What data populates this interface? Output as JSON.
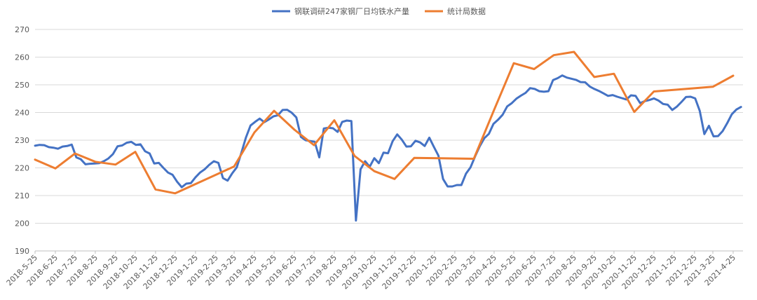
{
  "chart_data": {
    "type": "line",
    "ylim": [
      190,
      270
    ],
    "y_ticks": [
      190,
      200,
      210,
      220,
      230,
      240,
      250,
      260,
      270
    ],
    "x_tick_labels": [
      "2018-5-25",
      "2018-6-25",
      "2018-7-25",
      "2018-8-25",
      "2018-9-25",
      "2018-10-25",
      "2018-11-25",
      "2018-12-25",
      "2019-1-25",
      "2019-2-25",
      "2019-3-25",
      "2019-4-25",
      "2019-5-25",
      "2019-6-25",
      "2019-7-25",
      "2019-8-25",
      "2019-9-25",
      "2019-10-25",
      "2019-11-25",
      "2019-12-25",
      "2020-1-25",
      "2020-2-25",
      "2020-3-25",
      "2020-4-25",
      "2020-5-25",
      "2020-6-25",
      "2020-7-25",
      "2020-8-25",
      "2020-9-25",
      "2020-10-25",
      "2020-11-25",
      "2020-12-25",
      "2021-1-25",
      "2021-2-25",
      "2021-3-25",
      "2021-4-25"
    ],
    "x_start": "2018-5-25",
    "x_end": "2021-5-10",
    "grid": true,
    "legend_position": "top",
    "series": [
      {
        "name": "钢联调研247家钢厂日均铁水产量",
        "color": "#4472c4",
        "points": [
          [
            "2018-5-25",
            228.0
          ],
          [
            "2018-6-1",
            228.3
          ],
          [
            "2018-6-8",
            228.2
          ],
          [
            "2018-6-15",
            227.5
          ],
          [
            "2018-6-22",
            227.3
          ],
          [
            "2018-6-29",
            226.9
          ],
          [
            "2018-7-6",
            227.7
          ],
          [
            "2018-7-13",
            227.9
          ],
          [
            "2018-7-20",
            228.4
          ],
          [
            "2018-7-27",
            223.8
          ],
          [
            "2018-8-3",
            223.1
          ],
          [
            "2018-8-10",
            221.3
          ],
          [
            "2018-8-17",
            221.5
          ],
          [
            "2018-8-24",
            221.6
          ],
          [
            "2018-8-31",
            221.7
          ],
          [
            "2018-9-7",
            222.4
          ],
          [
            "2018-9-14",
            223.4
          ],
          [
            "2018-9-21",
            225.0
          ],
          [
            "2018-9-28",
            227.8
          ],
          [
            "2018-10-5",
            228.1
          ],
          [
            "2018-10-12",
            229.1
          ],
          [
            "2018-10-19",
            229.4
          ],
          [
            "2018-10-26",
            228.3
          ],
          [
            "2018-11-2",
            228.5
          ],
          [
            "2018-11-9",
            226.0
          ],
          [
            "2018-11-16",
            225.2
          ],
          [
            "2018-11-23",
            221.6
          ],
          [
            "2018-11-30",
            221.8
          ],
          [
            "2018-12-7",
            220.0
          ],
          [
            "2018-12-14",
            218.3
          ],
          [
            "2018-12-21",
            217.5
          ],
          [
            "2018-12-28",
            215.0
          ],
          [
            "2019-1-4",
            213.0
          ],
          [
            "2019-1-11",
            214.3
          ],
          [
            "2019-1-18",
            214.5
          ],
          [
            "2019-1-25",
            216.6
          ],
          [
            "2019-2-1",
            218.3
          ],
          [
            "2019-2-8",
            219.5
          ],
          [
            "2019-2-15",
            221.1
          ],
          [
            "2019-2-22",
            222.4
          ],
          [
            "2019-3-1",
            221.8
          ],
          [
            "2019-3-8",
            216.3
          ],
          [
            "2019-3-15",
            215.4
          ],
          [
            "2019-3-22",
            218.0
          ],
          [
            "2019-3-29",
            220.2
          ],
          [
            "2019-4-5",
            225.4
          ],
          [
            "2019-4-12",
            231.0
          ],
          [
            "2019-4-19",
            235.3
          ],
          [
            "2019-4-26",
            236.6
          ],
          [
            "2019-5-3",
            237.8
          ],
          [
            "2019-5-10",
            236.5
          ],
          [
            "2019-5-17",
            237.5
          ],
          [
            "2019-5-24",
            238.6
          ],
          [
            "2019-5-31",
            239.0
          ],
          [
            "2019-6-7",
            240.9
          ],
          [
            "2019-6-14",
            241.0
          ],
          [
            "2019-6-21",
            239.9
          ],
          [
            "2019-6-28",
            238.2
          ],
          [
            "2019-7-5",
            231.2
          ],
          [
            "2019-7-12",
            230.0
          ],
          [
            "2019-7-19",
            229.7
          ],
          [
            "2019-7-26",
            229.4
          ],
          [
            "2019-8-2",
            223.8
          ],
          [
            "2019-8-9",
            234.2
          ],
          [
            "2019-8-16",
            234.5
          ],
          [
            "2019-8-23",
            234.3
          ],
          [
            "2019-8-30",
            233.0
          ],
          [
            "2019-9-6",
            236.6
          ],
          [
            "2019-9-13",
            237.1
          ],
          [
            "2019-9-20",
            236.9
          ],
          [
            "2019-9-27",
            201.0
          ],
          [
            "2019-10-4",
            219.5
          ],
          [
            "2019-10-11",
            222.4
          ],
          [
            "2019-10-18",
            220.4
          ],
          [
            "2019-10-25",
            223.5
          ],
          [
            "2019-11-1",
            221.7
          ],
          [
            "2019-11-8",
            225.5
          ],
          [
            "2019-11-15",
            225.3
          ],
          [
            "2019-11-22",
            229.6
          ],
          [
            "2019-11-29",
            232.1
          ],
          [
            "2019-12-6",
            230.2
          ],
          [
            "2019-12-13",
            227.7
          ],
          [
            "2019-12-20",
            227.8
          ],
          [
            "2019-12-27",
            229.8
          ],
          [
            "2020-1-3",
            229.2
          ],
          [
            "2020-1-10",
            227.9
          ],
          [
            "2020-1-17",
            230.9
          ],
          [
            "2020-1-24",
            227.6
          ],
          [
            "2020-1-31",
            224.4
          ],
          [
            "2020-2-7",
            216.0
          ],
          [
            "2020-2-14",
            213.3
          ],
          [
            "2020-2-21",
            213.3
          ],
          [
            "2020-2-28",
            213.8
          ],
          [
            "2020-3-6",
            213.8
          ],
          [
            "2020-3-13",
            217.9
          ],
          [
            "2020-3-20",
            220.2
          ],
          [
            "2020-3-27",
            224.2
          ],
          [
            "2020-4-3",
            227.8
          ],
          [
            "2020-4-10",
            230.7
          ],
          [
            "2020-4-17",
            232.3
          ],
          [
            "2020-4-24",
            235.9
          ],
          [
            "2020-5-1",
            237.4
          ],
          [
            "2020-5-8",
            239.2
          ],
          [
            "2020-5-15",
            242.2
          ],
          [
            "2020-5-22",
            243.4
          ],
          [
            "2020-5-29",
            245.0
          ],
          [
            "2020-6-5",
            246.1
          ],
          [
            "2020-6-12",
            247.1
          ],
          [
            "2020-6-19",
            248.8
          ],
          [
            "2020-6-26",
            248.5
          ],
          [
            "2020-7-3",
            247.7
          ],
          [
            "2020-7-10",
            247.5
          ],
          [
            "2020-7-17",
            247.7
          ],
          [
            "2020-7-24",
            251.7
          ],
          [
            "2020-7-31",
            252.4
          ],
          [
            "2020-8-7",
            253.4
          ],
          [
            "2020-8-14",
            252.6
          ],
          [
            "2020-8-21",
            252.2
          ],
          [
            "2020-8-28",
            251.8
          ],
          [
            "2020-9-4",
            251.0
          ],
          [
            "2020-9-11",
            250.9
          ],
          [
            "2020-9-18",
            249.4
          ],
          [
            "2020-9-25",
            248.5
          ],
          [
            "2020-10-2",
            247.8
          ],
          [
            "2020-10-9",
            246.9
          ],
          [
            "2020-10-16",
            246.0
          ],
          [
            "2020-10-23",
            246.3
          ],
          [
            "2020-10-30",
            245.7
          ],
          [
            "2020-11-6",
            245.2
          ],
          [
            "2020-11-13",
            244.7
          ],
          [
            "2020-11-20",
            246.2
          ],
          [
            "2020-11-27",
            246.0
          ],
          [
            "2020-12-4",
            243.4
          ],
          [
            "2020-12-11",
            244.1
          ],
          [
            "2020-12-18",
            244.5
          ],
          [
            "2020-12-25",
            245.1
          ],
          [
            "2021-1-1",
            244.3
          ],
          [
            "2021-1-8",
            243.1
          ],
          [
            "2021-1-15",
            242.8
          ],
          [
            "2021-1-22",
            240.9
          ],
          [
            "2021-1-29",
            242.1
          ],
          [
            "2021-2-5",
            243.8
          ],
          [
            "2021-2-12",
            245.6
          ],
          [
            "2021-2-19",
            245.7
          ],
          [
            "2021-2-26",
            245.1
          ],
          [
            "2021-3-5",
            240.6
          ],
          [
            "2021-3-12",
            232.2
          ],
          [
            "2021-3-19",
            235.2
          ],
          [
            "2021-3-26",
            231.4
          ],
          [
            "2021-4-2",
            231.5
          ],
          [
            "2021-4-9",
            233.3
          ],
          [
            "2021-4-16",
            236.2
          ],
          [
            "2021-4-23",
            239.4
          ],
          [
            "2021-4-30",
            241.1
          ],
          [
            "2021-5-7",
            242.0
          ]
        ]
      },
      {
        "name": "统计局数据",
        "color": "#ed7d31",
        "points": [
          [
            "2018-5-25",
            223.0
          ],
          [
            "2018-6-25",
            219.8
          ],
          [
            "2018-7-25",
            225.2
          ],
          [
            "2018-8-25",
            222.2
          ],
          [
            "2018-9-25",
            221.2
          ],
          [
            "2018-10-25",
            225.8
          ],
          [
            "2018-11-25",
            212.2
          ],
          [
            "2018-12-25",
            210.8
          ],
          [
            "2019-3-25",
            220.5
          ],
          [
            "2019-4-25",
            232.8
          ],
          [
            "2019-5-25",
            240.6
          ],
          [
            "2019-6-25",
            233.8
          ],
          [
            "2019-7-25",
            228.2
          ],
          [
            "2019-8-25",
            237.2
          ],
          [
            "2019-9-25",
            224.3
          ],
          [
            "2019-10-25",
            218.8
          ],
          [
            "2019-11-25",
            216.0
          ],
          [
            "2019-12-25",
            223.6
          ],
          [
            "2020-3-25",
            223.3
          ],
          [
            "2020-4-25",
            241.0
          ],
          [
            "2020-5-25",
            257.8
          ],
          [
            "2020-6-25",
            255.7
          ],
          [
            "2020-7-25",
            260.7
          ],
          [
            "2020-8-25",
            261.9
          ],
          [
            "2020-9-25",
            252.8
          ],
          [
            "2020-10-25",
            254.0
          ],
          [
            "2020-11-25",
            240.2
          ],
          [
            "2020-12-25",
            247.6
          ],
          [
            "2021-3-25",
            249.3
          ],
          [
            "2021-4-25",
            253.3
          ]
        ]
      }
    ]
  }
}
